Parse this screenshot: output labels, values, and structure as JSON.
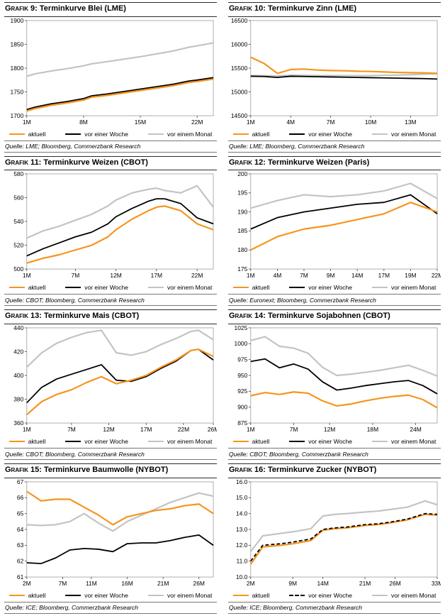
{
  "legend": {
    "aktuell": "aktuell",
    "woche": "vor einer Woche",
    "monat": "vor einem Monat"
  },
  "colors": {
    "aktuell": "#F7941D",
    "woche": "#000000",
    "monat": "#C3C3C3"
  },
  "chart_data": [
    {
      "type": "line",
      "prefix": "Grafik 9:",
      "title": "Terminkurve Blei (LME)",
      "source": "Quelle: LME; Bloomberg, Commerzbank Research",
      "x": [
        1,
        2,
        4,
        6,
        8,
        9,
        11,
        13,
        15,
        17,
        19,
        21,
        22,
        24
      ],
      "xticks": [
        1,
        8,
        15,
        22
      ],
      "xtick_labels": [
        "1M",
        "8M",
        "15M",
        "22M"
      ],
      "ylim": [
        1700,
        1900
      ],
      "yticks": [
        1700,
        1750,
        1800,
        1850,
        1900
      ],
      "ytick_labels": [
        "1700",
        "1750",
        "1800",
        "1850",
        "1900"
      ],
      "series": [
        {
          "name": "aktuell",
          "color": "#F7941D",
          "width": 2.2,
          "z": 2,
          "values": [
            1710,
            1715,
            1722,
            1727,
            1733,
            1739,
            1743,
            1748,
            1753,
            1758,
            1763,
            1770,
            1772,
            1777
          ]
        },
        {
          "name": "vor einer Woche",
          "color": "#000000",
          "width": 1.8,
          "z": 1,
          "values": [
            1713,
            1718,
            1725,
            1730,
            1736,
            1742,
            1746,
            1751,
            1756,
            1761,
            1766,
            1773,
            1775,
            1780
          ]
        },
        {
          "name": "vor einem Monat",
          "color": "#C3C3C3",
          "width": 2.2,
          "z": 0,
          "values": [
            1783,
            1788,
            1794,
            1799,
            1805,
            1809,
            1814,
            1819,
            1824,
            1830,
            1836,
            1844,
            1847,
            1853
          ]
        }
      ]
    },
    {
      "type": "line",
      "prefix": "Grafik 10:",
      "title": "Terminkurve Zinn (LME)",
      "source": "Quelle: LME; Bloomberg, Commerzbank Research",
      "x": [
        1,
        2,
        3,
        4,
        5,
        6,
        7,
        8,
        9,
        10,
        11,
        12,
        13,
        14,
        15
      ],
      "xticks": [
        1,
        4,
        7,
        10,
        13
      ],
      "xtick_labels": [
        "1M",
        "4M",
        "7M",
        "10M",
        "13M"
      ],
      "ylim": [
        14500,
        16500
      ],
      "yticks": [
        14500,
        15000,
        15500,
        16000,
        16500
      ],
      "ytick_labels": [
        "14500",
        "15000",
        "15500",
        "16000",
        "16500"
      ],
      "series": [
        {
          "name": "aktuell",
          "color": "#F7941D",
          "width": 2.2,
          "z": 2,
          "values": [
            15730,
            15600,
            15390,
            15470,
            15480,
            15460,
            15450,
            15445,
            15435,
            15430,
            15420,
            15410,
            15405,
            15400,
            15390
          ]
        },
        {
          "name": "vor einer Woche",
          "color": "#000000",
          "width": 1.8,
          "z": 1,
          "values": [
            15330,
            15325,
            15305,
            15330,
            15325,
            15320,
            15315,
            15310,
            15305,
            15300,
            15295,
            15290,
            15285,
            15280,
            15270
          ]
        },
        {
          "name": "vor einem Monat",
          "color": "#C3C3C3",
          "width": 2.2,
          "z": 0,
          "values": [
            15345,
            15340,
            15335,
            15350,
            15348,
            15345,
            15342,
            15342,
            15342,
            15345,
            15350,
            15355,
            15362,
            15372,
            15385
          ]
        }
      ]
    },
    {
      "type": "line",
      "prefix": "Grafik 11:",
      "title": "Terminkurve Weizen (CBOT)",
      "source": "Quelle: CBOT; Bloomberg, Commerzbank Research",
      "x": [
        1,
        3,
        5,
        7,
        9,
        11,
        12,
        14,
        16,
        17,
        18,
        20,
        22,
        24
      ],
      "xticks": [
        1,
        7,
        12,
        17,
        22
      ],
      "xtick_labels": [
        "1M",
        "7M",
        "12M",
        "17M",
        "22M"
      ],
      "ylim": [
        500,
        580
      ],
      "yticks": [
        500,
        520,
        540,
        560,
        580
      ],
      "ytick_labels": [
        "500",
        "520",
        "540",
        "560",
        "580"
      ],
      "series": [
        {
          "name": "aktuell",
          "color": "#F7941D",
          "width": 2.2,
          "z": 2,
          "values": [
            505,
            509,
            512,
            516,
            520,
            527,
            533,
            542,
            549,
            552,
            553,
            549,
            538,
            533
          ]
        },
        {
          "name": "vor einer Woche",
          "color": "#000000",
          "width": 1.8,
          "z": 1,
          "values": [
            511,
            517,
            522,
            527,
            531,
            538,
            544,
            551,
            557,
            559,
            559,
            555,
            543,
            538
          ]
        },
        {
          "name": "vor einem Monat",
          "color": "#C3C3C3",
          "width": 2.2,
          "z": 0,
          "values": [
            526,
            532,
            536,
            541,
            546,
            553,
            558,
            564,
            567,
            568,
            566,
            564,
            570,
            552
          ]
        }
      ]
    },
    {
      "type": "line",
      "prefix": "Grafik 12:",
      "title": "Terminkurve Weizen (Paris)",
      "source": "Quelle: Euronext; Bloomberg, Commerzbank Research",
      "x": [
        0,
        1,
        2,
        3,
        4,
        5,
        6,
        7
      ],
      "xticks": [
        0,
        1,
        2,
        3,
        4,
        5,
        6,
        7
      ],
      "xtick_labels": [
        "1M",
        "4M",
        "7M",
        "9M",
        "14M",
        "17M",
        "19M",
        "22M"
      ],
      "ylim": [
        175,
        200
      ],
      "yticks": [
        175,
        180,
        185,
        190,
        195,
        200
      ],
      "ytick_labels": [
        "175",
        "180",
        "185",
        "190",
        "195",
        "200"
      ],
      "series": [
        {
          "name": "aktuell",
          "color": "#F7941D",
          "width": 2.2,
          "z": 2,
          "values": [
            180,
            183.5,
            185.5,
            186.5,
            188,
            189.5,
            192.5,
            190
          ]
        },
        {
          "name": "vor einer Woche",
          "color": "#000000",
          "width": 1.8,
          "z": 1,
          "values": [
            185.5,
            188.5,
            190,
            191,
            192,
            192.5,
            194.5,
            189.5
          ]
        },
        {
          "name": "vor einem Monat",
          "color": "#C3C3C3",
          "width": 2.2,
          "z": 0,
          "values": [
            191,
            193,
            194.5,
            194,
            194.5,
            195.5,
            197.5,
            193.5
          ]
        }
      ]
    },
    {
      "type": "line",
      "prefix": "Grafik 13:",
      "title": "Terminkurve Mais (CBOT)",
      "source": "Quelle: CBOT; Bloomberg, Commerzbank Research",
      "x": [
        1,
        3,
        5,
        7,
        9,
        11,
        13,
        15,
        17,
        19,
        21,
        23,
        24,
        26
      ],
      "xticks": [
        1,
        7,
        12,
        17,
        22,
        26
      ],
      "xtick_labels": [
        "1M",
        "7M",
        "12M",
        "17M",
        "22M",
        "26M"
      ],
      "ylim": [
        360,
        440
      ],
      "yticks": [
        360,
        380,
        400,
        420,
        440
      ],
      "ytick_labels": [
        "360",
        "380",
        "400",
        "420",
        "440"
      ],
      "series": [
        {
          "name": "aktuell",
          "color": "#F7941D",
          "width": 2.2,
          "z": 2,
          "values": [
            367,
            378,
            384,
            388,
            394,
            399,
            393,
            396,
            400,
            407,
            413,
            421,
            422,
            416
          ]
        },
        {
          "name": "vor einer Woche",
          "color": "#000000",
          "width": 1.8,
          "z": 1,
          "values": [
            377,
            390,
            397,
            401,
            405,
            409,
            396,
            395,
            399,
            406,
            412,
            421,
            422,
            413
          ]
        },
        {
          "name": "vor einem Monat",
          "color": "#C3C3C3",
          "width": 2.2,
          "z": 0,
          "values": [
            407,
            419,
            427,
            432,
            436,
            438,
            419,
            417,
            420,
            426,
            431,
            437,
            438,
            430
          ]
        }
      ]
    },
    {
      "type": "line",
      "prefix": "Grafik 14:",
      "title": "Terminkurve Sojabohnen (CBOT)",
      "source": "Quelle: CBOT; Bloomberg, Commerzbank Research",
      "x": [
        1,
        3,
        5,
        7,
        9,
        11,
        13,
        15,
        17,
        19,
        21,
        23,
        25,
        27
      ],
      "xticks": [
        1,
        7,
        12,
        18,
        24
      ],
      "xtick_labels": [
        "1M",
        "7M",
        "12M",
        "18M",
        "24M"
      ],
      "ylim": [
        875,
        1025
      ],
      "yticks": [
        875,
        900,
        925,
        950,
        975,
        1000,
        1025
      ],
      "ytick_labels": [
        "875",
        "900",
        "925",
        "950",
        "975",
        "1000",
        "1025"
      ],
      "series": [
        {
          "name": "aktuell",
          "color": "#F7941D",
          "width": 2.2,
          "z": 2,
          "values": [
            918,
            923,
            920,
            924,
            922,
            910,
            902,
            905,
            910,
            914,
            917,
            919,
            912,
            899
          ]
        },
        {
          "name": "vor einer Woche",
          "color": "#000000",
          "width": 1.8,
          "z": 1,
          "values": [
            972,
            976,
            962,
            968,
            960,
            940,
            927,
            930,
            934,
            937,
            940,
            942,
            934,
            921
          ]
        },
        {
          "name": "vor einem Monat",
          "color": "#C3C3C3",
          "width": 2.2,
          "z": 0,
          "values": [
            1005,
            1011,
            996,
            993,
            985,
            963,
            950,
            952,
            955,
            958,
            962,
            966,
            958,
            949
          ]
        }
      ]
    },
    {
      "type": "line",
      "prefix": "Grafik 15:",
      "title": "Terminkurve Baumwolle (NYBOT)",
      "source": "Quelle: ICE; Bloomberg, Commerzbank Research",
      "x": [
        2,
        4,
        6,
        8,
        10,
        12,
        14,
        16,
        18,
        20,
        22,
        24,
        26,
        28
      ],
      "xticks": [
        2,
        7,
        11,
        16,
        21,
        26
      ],
      "xtick_labels": [
        "2M",
        "7M",
        "11M",
        "16M",
        "21M",
        "26M"
      ],
      "ylim": [
        61,
        67
      ],
      "yticks": [
        61,
        62,
        63,
        64,
        65,
        66,
        67
      ],
      "ytick_labels": [
        "61",
        "62",
        "63",
        "64",
        "65",
        "66",
        "67"
      ],
      "series": [
        {
          "name": "aktuell",
          "color": "#F7941D",
          "width": 2.2,
          "z": 2,
          "values": [
            66.4,
            65.8,
            65.9,
            65.9,
            65.4,
            64.9,
            64.3,
            64.8,
            65.0,
            65.2,
            65.3,
            65.5,
            65.6,
            65.0
          ]
        },
        {
          "name": "vor einer Woche",
          "color": "#000000",
          "width": 1.8,
          "z": 1,
          "values": [
            61.9,
            61.85,
            62.2,
            62.7,
            62.8,
            62.75,
            62.6,
            63.1,
            63.15,
            63.15,
            63.3,
            63.5,
            63.65,
            63.0
          ]
        },
        {
          "name": "vor einem Monat",
          "color": "#C3C3C3",
          "width": 2.2,
          "z": 0,
          "values": [
            64.3,
            64.25,
            64.3,
            64.5,
            65.0,
            64.4,
            63.9,
            64.5,
            64.9,
            65.3,
            65.7,
            66.0,
            66.3,
            66.1
          ]
        }
      ]
    },
    {
      "type": "line",
      "prefix": "Grafik 16:",
      "title": "Terminkurve Zucker (NYBOT)",
      "source": "Quelle: ICE; Bloomberg, Commerzbank Research",
      "x": [
        2,
        4,
        7,
        9,
        12,
        14,
        16,
        18,
        21,
        23,
        25,
        28,
        31,
        33
      ],
      "xticks": [
        2,
        9,
        14,
        21,
        26,
        33
      ],
      "xtick_labels": [
        "2M",
        "9M",
        "14M",
        "21M",
        "26M",
        "33M"
      ],
      "ylim": [
        10,
        16
      ],
      "yticks": [
        10,
        11,
        12,
        13,
        14,
        15,
        16
      ],
      "ytick_labels": [
        "10.0",
        "11.0",
        "12.0",
        "13.0",
        "14.0",
        "15.0",
        "16.0"
      ],
      "series": [
        {
          "name": "aktuell",
          "color": "#F7941D",
          "width": 2.2,
          "z": 1,
          "values": [
            10.8,
            11.9,
            12.0,
            12.1,
            12.3,
            12.95,
            13.05,
            13.1,
            13.25,
            13.3,
            13.4,
            13.6,
            13.95,
            13.9
          ]
        },
        {
          "name": "vor einer Woche",
          "color": "#000000",
          "width": 1.8,
          "z": 2,
          "dash": "5,3",
          "values": [
            11.0,
            12.0,
            12.1,
            12.2,
            12.4,
            13.0,
            13.1,
            13.15,
            13.3,
            13.35,
            13.45,
            13.65,
            14.0,
            13.95
          ]
        },
        {
          "name": "vor einem Monat",
          "color": "#C3C3C3",
          "width": 2.2,
          "z": 0,
          "values": [
            11.6,
            12.6,
            12.75,
            12.85,
            13.05,
            13.85,
            13.95,
            14.0,
            14.1,
            14.15,
            14.25,
            14.4,
            14.8,
            14.55
          ]
        }
      ]
    }
  ]
}
